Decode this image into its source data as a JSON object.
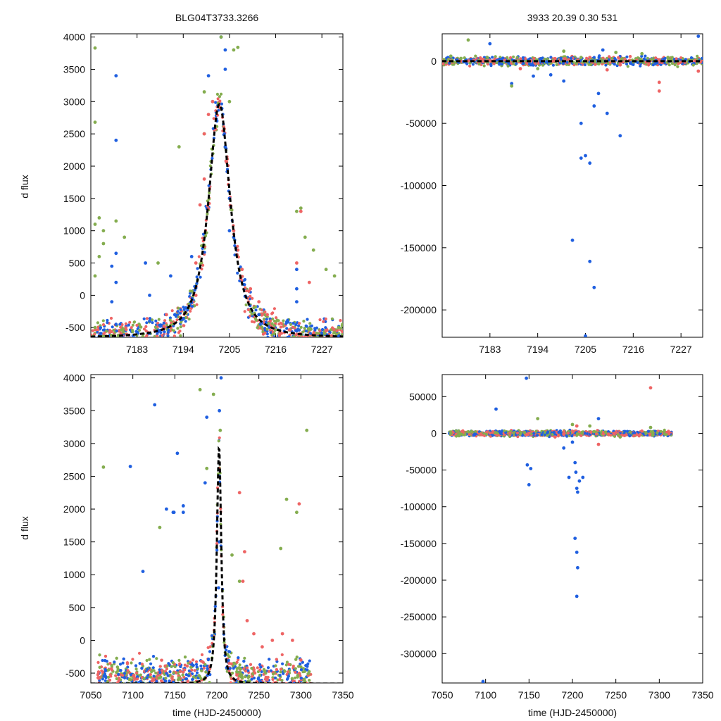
{
  "figure": {
    "title_left": "BLG04T3733.3266",
    "title_right": "3933  20.39  0.30  531",
    "ylabel": "d flux",
    "xlabel": "time (HJD-2450000)"
  },
  "colors": {
    "blue": "#1f5fe0",
    "green": "#84ad4f",
    "red": "#ee6464",
    "fit": "#000000"
  },
  "chart_data": [
    {
      "id": "top-left",
      "type": "scatter",
      "title": "BLG04T3733.3266",
      "ylabel": "d flux",
      "xlabel": "",
      "xlim": [
        7172,
        7232
      ],
      "ylim": [
        -650,
        4050
      ],
      "xticks": [
        7183,
        7194,
        7205,
        7216,
        7227
      ],
      "yticks": [
        -500,
        0,
        500,
        1000,
        1500,
        2000,
        2500,
        3000,
        3500,
        4000
      ],
      "model": {
        "t0": 7202.6,
        "amplitude": 3620,
        "width": 3.5,
        "baseline": -660
      },
      "series": [
        {
          "name": "blue",
          "color": "#1f5fe0",
          "points": [
            [
              7178,
              3400
            ],
            [
              7178,
              2400
            ],
            [
              7178,
              650
            ],
            [
              7177,
              450
            ],
            [
              7178,
              200
            ],
            [
              7177,
              -100
            ],
            [
              7178,
              -450
            ],
            [
              7185,
              500
            ],
            [
              7186,
              0
            ],
            [
              7186,
              -400
            ],
            [
              7191,
              300
            ],
            [
              7192,
              -300
            ],
            [
              7196,
              600
            ],
            [
              7200,
              3400
            ],
            [
              7201,
              3000
            ],
            [
              7202,
              2700
            ],
            [
              7204,
              2300
            ],
            [
              7205,
              1500
            ],
            [
              7205,
              1000
            ],
            [
              7206,
              900
            ],
            [
              7203,
              4000
            ],
            [
              7204,
              3800
            ],
            [
              7204,
              3500
            ],
            [
              7212,
              -300
            ],
            [
              7221,
              400
            ],
            [
              7221,
              100
            ],
            [
              7221,
              -100
            ],
            [
              7221,
              -550
            ]
          ]
        },
        {
          "name": "green",
          "color": "#84ad4f",
          "points": [
            [
              7173,
              3830
            ],
            [
              7173,
              2680
            ],
            [
              7173,
              1100
            ],
            [
              7174,
              1200
            ],
            [
              7175,
              1000
            ],
            [
              7174,
              600
            ],
            [
              7173,
              300
            ],
            [
              7173,
              -500
            ],
            [
              7175,
              800
            ],
            [
              7178,
              1150
            ],
            [
              7180,
              900
            ],
            [
              7188,
              500
            ],
            [
              7193,
              2300
            ],
            [
              7199,
              3150
            ],
            [
              7199,
              2500
            ],
            [
              7203,
              4000
            ],
            [
              7206,
              3800
            ],
            [
              7207,
              3840
            ],
            [
              7205,
              3000
            ],
            [
              7221,
              1300
            ],
            [
              7222,
              1350
            ],
            [
              7223,
              900
            ],
            [
              7225,
              700
            ],
            [
              7228,
              400
            ],
            [
              7230,
              300
            ],
            [
              7231,
              -500
            ]
          ]
        },
        {
          "name": "red",
          "color": "#ee6464",
          "points": [
            [
              7190,
              -300
            ],
            [
              7191,
              -500
            ],
            [
              7197,
              500
            ],
            [
              7197,
              0
            ],
            [
              7199,
              2500
            ],
            [
              7200,
              2800
            ],
            [
              7201,
              3000
            ],
            [
              7199,
              1800
            ],
            [
              7198,
              1400
            ],
            [
              7206,
              1000
            ],
            [
              7207,
              700
            ],
            [
              7208,
              400
            ],
            [
              7210,
              100
            ],
            [
              7212,
              -100
            ],
            [
              7214,
              -300
            ],
            [
              7217,
              -600
            ],
            [
              7221,
              500
            ],
            [
              7222,
              1300
            ],
            [
              7224,
              200
            ]
          ]
        }
      ]
    },
    {
      "id": "top-right",
      "type": "scatter",
      "title": "3933  20.39  0.30  531",
      "ylabel": "",
      "xlabel": "",
      "xlim": [
        7172,
        7232
      ],
      "ylim": [
        -222000,
        22000
      ],
      "xticks": [
        7183,
        7194,
        7205,
        7216,
        7227
      ],
      "yticks": [
        -200000,
        -150000,
        -100000,
        -50000,
        0
      ],
      "model": {
        "t0": 7202.6,
        "amplitude": 3620,
        "width": 3.5,
        "baseline": -660
      },
      "series": [
        {
          "name": "blue",
          "color": "#1f5fe0",
          "points": [
            [
              7183,
              14000
            ],
            [
              7188,
              -18000
            ],
            [
              7193,
              -12000
            ],
            [
              7197,
              -11000
            ],
            [
              7200,
              -16000
            ],
            [
              7204,
              -50000
            ],
            [
              7204,
              -78000
            ],
            [
              7205,
              -76000
            ],
            [
              7206,
              -82000
            ],
            [
              7207,
              -36000
            ],
            [
              7208,
              -26000
            ],
            [
              7209,
              9000
            ],
            [
              7210,
              -42000
            ],
            [
              7213,
              -60000
            ],
            [
              7202,
              -144000
            ],
            [
              7206,
              -161000
            ],
            [
              7207,
              -182000
            ],
            [
              7205,
              -221000
            ],
            [
              7231,
              20000
            ]
          ]
        },
        {
          "name": "green",
          "color": "#84ad4f",
          "points": [
            [
              7174,
              4000
            ],
            [
              7178,
              17000
            ],
            [
              7188,
              -20000
            ],
            [
              7194,
              -6000
            ],
            [
              7200,
              8000
            ],
            [
              7204,
              3000
            ],
            [
              7212,
              7000
            ],
            [
              7218,
              6000
            ],
            [
              7224,
              3000
            ]
          ]
        },
        {
          "name": "red",
          "color": "#ee6464",
          "points": [
            [
              7190,
              -6000
            ],
            [
              7198,
              2000
            ],
            [
              7206,
              3000
            ],
            [
              7210,
              -7000
            ],
            [
              7213,
              -3000
            ],
            [
              7222,
              -24000
            ],
            [
              7222,
              -17000
            ],
            [
              7231,
              -8000
            ]
          ]
        }
      ]
    },
    {
      "id": "bottom-left",
      "type": "scatter",
      "title": "",
      "ylabel": "d flux",
      "xlabel": "time (HJD-2450000)",
      "xlim": [
        7050,
        7350
      ],
      "ylim": [
        -650,
        4050
      ],
      "xticks": [
        7050,
        7100,
        7150,
        7200,
        7250,
        7300,
        7350
      ],
      "yticks": [
        -500,
        0,
        500,
        1000,
        1500,
        2000,
        2500,
        3000,
        3500,
        4000
      ],
      "model": {
        "t0": 7202.6,
        "amplitude": 3620,
        "width": 3.5,
        "baseline": -660
      },
      "series": [
        {
          "name": "blue",
          "color": "#1f5fe0",
          "points": [
            [
              7097,
              2650
            ],
            [
              7126,
              3590
            ],
            [
              7153,
              2850
            ],
            [
              7140,
              2000
            ],
            [
              7160,
              1950
            ],
            [
              7160,
              2050
            ],
            [
              7149,
              1950
            ],
            [
              7148,
              1950
            ],
            [
              7112,
              1050
            ],
            [
              7188,
              3400
            ],
            [
              7186,
              2400
            ],
            [
              7205,
              4000
            ],
            [
              7203,
              3500
            ],
            [
              7203,
              2500
            ],
            [
              7203,
              1500
            ],
            [
              7202,
              800
            ]
          ]
        },
        {
          "name": "green",
          "color": "#84ad4f",
          "points": [
            [
              7065,
              2640
            ],
            [
              7132,
              1720
            ],
            [
              7180,
              3820
            ],
            [
              7188,
              2620
            ],
            [
              7196,
              3750
            ],
            [
              7204,
              3200
            ],
            [
              7218,
              1300
            ],
            [
              7276,
              1400
            ],
            [
              7283,
              2150
            ],
            [
              7295,
              1950
            ],
            [
              7307,
              3200
            ],
            [
              7227,
              900
            ]
          ]
        },
        {
          "name": "red",
          "color": "#ee6464",
          "points": [
            [
              7227,
              2250
            ],
            [
              7233,
              1350
            ],
            [
              7298,
              2080
            ],
            [
              7231,
              900
            ],
            [
              7236,
              300
            ],
            [
              7244,
              100
            ],
            [
              7254,
              -100
            ],
            [
              7266,
              0
            ],
            [
              7278,
              100
            ],
            [
              7290,
              0
            ],
            [
              7300,
              -300
            ]
          ]
        }
      ]
    },
    {
      "id": "bottom-right",
      "type": "scatter",
      "title": "",
      "ylabel": "",
      "xlabel": "time (HJD-2450000)",
      "xlim": [
        7050,
        7350
      ],
      "ylim": [
        -340000,
        80000
      ],
      "xticks": [
        7050,
        7100,
        7150,
        7200,
        7250,
        7300,
        7350
      ],
      "yticks": [
        -300000,
        -250000,
        -200000,
        -150000,
        -100000,
        -50000,
        0,
        50000
      ],
      "model": null,
      "series": [
        {
          "name": "blue",
          "color": "#1f5fe0",
          "points": [
            [
              7112,
              33000
            ],
            [
              7147,
              75000
            ],
            [
              7148,
              -43000
            ],
            [
              7150,
              -70000
            ],
            [
              7152,
              -48000
            ],
            [
              7190,
              -20000
            ],
            [
              7196,
              -60000
            ],
            [
              7200,
              -12000
            ],
            [
              7203,
              -40000
            ],
            [
              7204,
              -53000
            ],
            [
              7205,
              -75000
            ],
            [
              7206,
              -80000
            ],
            [
              7208,
              -65000
            ],
            [
              7212,
              -60000
            ],
            [
              7203,
              -143000
            ],
            [
              7205,
              -162000
            ],
            [
              7206,
              -183000
            ],
            [
              7205,
              -222000
            ],
            [
              7097,
              -338000
            ],
            [
              7230,
              20000
            ]
          ]
        },
        {
          "name": "green",
          "color": "#84ad4f",
          "points": [
            [
              7060,
              0
            ],
            [
              7070,
              0
            ],
            [
              7080,
              2000
            ],
            [
              7160,
              20000
            ],
            [
              7200,
              12000
            ],
            [
              7220,
              10000
            ],
            [
              7255,
              -5000
            ],
            [
              7290,
              8000
            ]
          ]
        },
        {
          "name": "red",
          "color": "#ee6464",
          "points": [
            [
              7290,
              62000
            ],
            [
              7180,
              -5000
            ],
            [
              7205,
              10000
            ],
            [
              7230,
              -15000
            ],
            [
              7260,
              -3000
            ],
            [
              7280,
              3000
            ]
          ]
        }
      ]
    }
  ]
}
